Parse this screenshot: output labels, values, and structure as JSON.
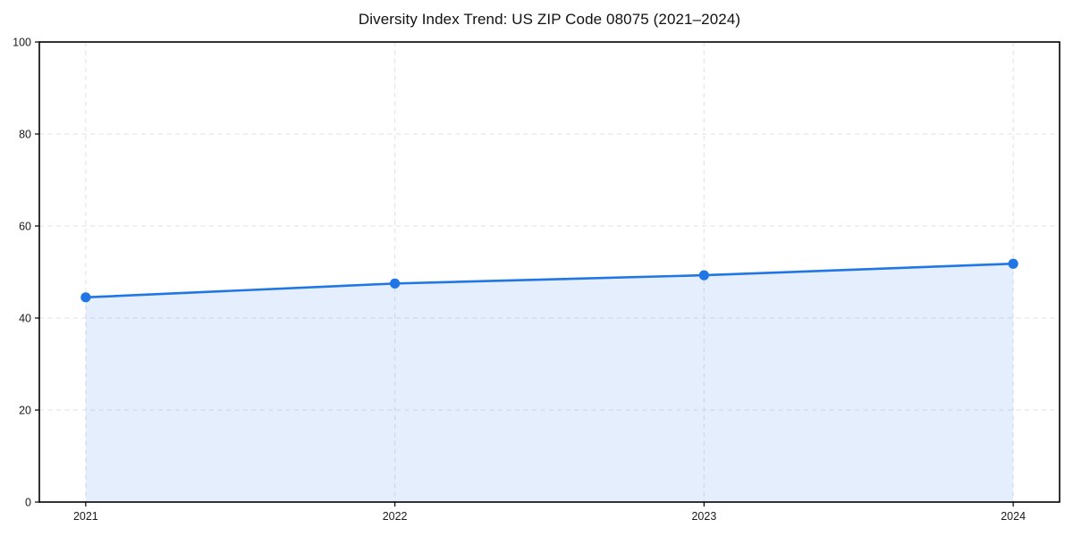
{
  "page": {
    "background": "#ffffff"
  },
  "chart_data": {
    "type": "line",
    "title": "Diversity Index Trend: US ZIP Code 08075 (2021–2024)",
    "x": [
      2021,
      2022,
      2023,
      2024
    ],
    "xtick_labels": [
      "2021",
      "2022",
      "2023",
      "2024"
    ],
    "series": [
      {
        "name": "Diversity Index",
        "values": [
          44.5,
          47.5,
          49.3,
          51.8
        ]
      }
    ],
    "xlabel": "",
    "ylabel": "",
    "ylim": [
      0,
      100
    ],
    "yticks": [
      0,
      20,
      40,
      60,
      80,
      100
    ],
    "grid": true,
    "grid_style": "dashed",
    "legend_position": "none",
    "area_fill": true,
    "markers": true,
    "colors": {
      "line": "#2176e5",
      "marker": "#2176e5",
      "area_fill": "rgba(33,118,229,0.12)",
      "grid": "#e2e2e2",
      "spine": "#000000",
      "tick_text": "#1a1a1a",
      "title_text": "#111111",
      "background": "#ffffff"
    }
  }
}
